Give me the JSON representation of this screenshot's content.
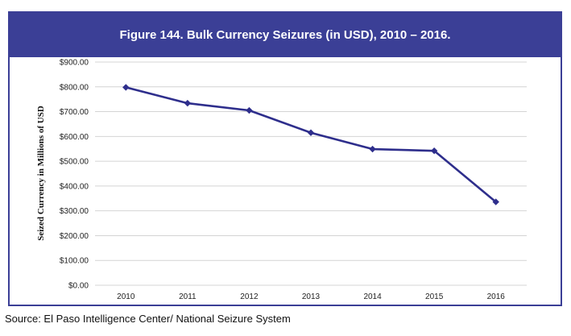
{
  "figure": {
    "title": "Figure 144. Bulk Currency Seizures (in USD), 2010 – 2016.",
    "source": "Source: El Paso Intelligence Center/ National Seizure System"
  },
  "colors": {
    "title_bar": "#3b3f96",
    "line": "#2e2e8c",
    "grid": "#d4d4d4"
  },
  "chart_data": {
    "type": "line",
    "title": "",
    "xlabel": "",
    "ylabel": "Seized Currency in Millions of USD",
    "categories": [
      "2010",
      "2011",
      "2012",
      "2013",
      "2014",
      "2015",
      "2016"
    ],
    "series": [
      {
        "values": [
          798,
          734,
          705,
          615,
          549,
          542,
          336
        ]
      }
    ],
    "ylim": [
      0,
      900
    ],
    "y_ticks": [
      0,
      100,
      200,
      300,
      400,
      500,
      600,
      700,
      800,
      900
    ],
    "y_tick_labels": [
      "$0.00",
      "$100.00",
      "$200.00",
      "$300.00",
      "$400.00",
      "$500.00",
      "$600.00",
      "$700.00",
      "$800.00",
      "$900.00"
    ],
    "grid": true,
    "legend": "none",
    "marker": "diamond"
  }
}
